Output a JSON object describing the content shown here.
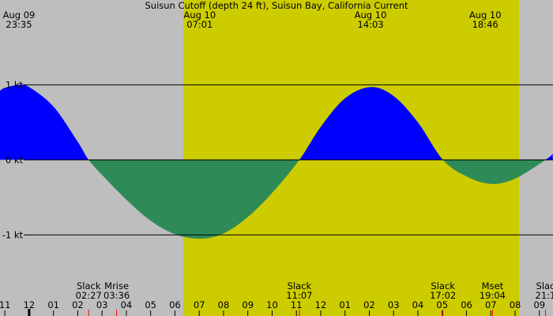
{
  "chart_data": {
    "type": "current",
    "title": "Suisun Cutoff (depth 24 ft), Suisun Bay, California Current",
    "x": [
      -1.2,
      -1,
      -0.42,
      0,
      1,
      2,
      2.45,
      3,
      4,
      5,
      6,
      7.02,
      8,
      9,
      10,
      11.12,
      12,
      13,
      14.05,
      15,
      16,
      17.03,
      18,
      19,
      20,
      21.25,
      21.55
    ],
    "series": [
      {
        "name": "current",
        "positive_color": "#0000ff",
        "negative_color": "#2e8b57",
        "values": [
          0.92,
          0.96,
          1.0,
          0.97,
          0.71,
          0.24,
          0,
          -0.2,
          -0.53,
          -0.81,
          -0.99,
          -1.05,
          -0.98,
          -0.76,
          -0.44,
          0,
          0.44,
          0.82,
          0.97,
          0.85,
          0.5,
          0,
          -0.22,
          -0.32,
          -0.25,
          0,
          0.08
        ]
      }
    ],
    "xlim": [
      -1.2,
      21.56
    ],
    "ylim": [
      -2.08,
      2.13
    ],
    "yticks": [
      {
        "value": 1,
        "label": "1 kt"
      },
      {
        "value": 0,
        "label": "0 kt"
      },
      {
        "value": -1,
        "label": "-1 kt"
      }
    ],
    "xticks": [
      {
        "value": -1,
        "label": "11"
      },
      {
        "value": 0,
        "label": "12"
      },
      {
        "value": 1,
        "label": "01"
      },
      {
        "value": 2,
        "label": "02"
      },
      {
        "value": 3,
        "label": "03"
      },
      {
        "value": 4,
        "label": "04"
      },
      {
        "value": 5,
        "label": "05"
      },
      {
        "value": 6,
        "label": "06"
      },
      {
        "value": 7,
        "label": "07"
      },
      {
        "value": 8,
        "label": "08"
      },
      {
        "value": 9,
        "label": "09"
      },
      {
        "value": 10,
        "label": "10"
      },
      {
        "value": 11,
        "label": "11"
      },
      {
        "value": 12,
        "label": "12"
      },
      {
        "value": 13,
        "label": "01"
      },
      {
        "value": 14,
        "label": "02"
      },
      {
        "value": 15,
        "label": "03"
      },
      {
        "value": 16,
        "label": "04"
      },
      {
        "value": 17,
        "label": "05"
      },
      {
        "value": 18,
        "label": "06"
      },
      {
        "value": 19,
        "label": "07"
      },
      {
        "value": 20,
        "label": "08"
      },
      {
        "value": 21,
        "label": "09"
      }
    ],
    "daylight": [
      6.34,
      20.16
    ],
    "night_color": "#bebebe",
    "day_color": "#cccc00",
    "extremes": [
      {
        "date": "Aug 09",
        "time": "23:35",
        "x": -0.42
      },
      {
        "date": "Aug 10",
        "time": "07:01",
        "x": 7.02
      },
      {
        "date": "Aug 10",
        "time": "14:03",
        "x": 14.05
      },
      {
        "date": "Aug 10",
        "time": "18:46",
        "x": 18.77
      }
    ],
    "events": [
      {
        "label": "Slack",
        "time": "02:27",
        "x": 2.45
      },
      {
        "label": "Mrise",
        "time": "03:36",
        "x": 3.6
      },
      {
        "label": "Slack",
        "time": "11:07",
        "x": 11.12
      },
      {
        "label": "Slack",
        "time": "17:02",
        "x": 17.03
      },
      {
        "label": "Mset",
        "time": "19:04",
        "x": 19.07
      },
      {
        "label": "Slac",
        "time": "21:1",
        "x": 21.25
      }
    ]
  }
}
